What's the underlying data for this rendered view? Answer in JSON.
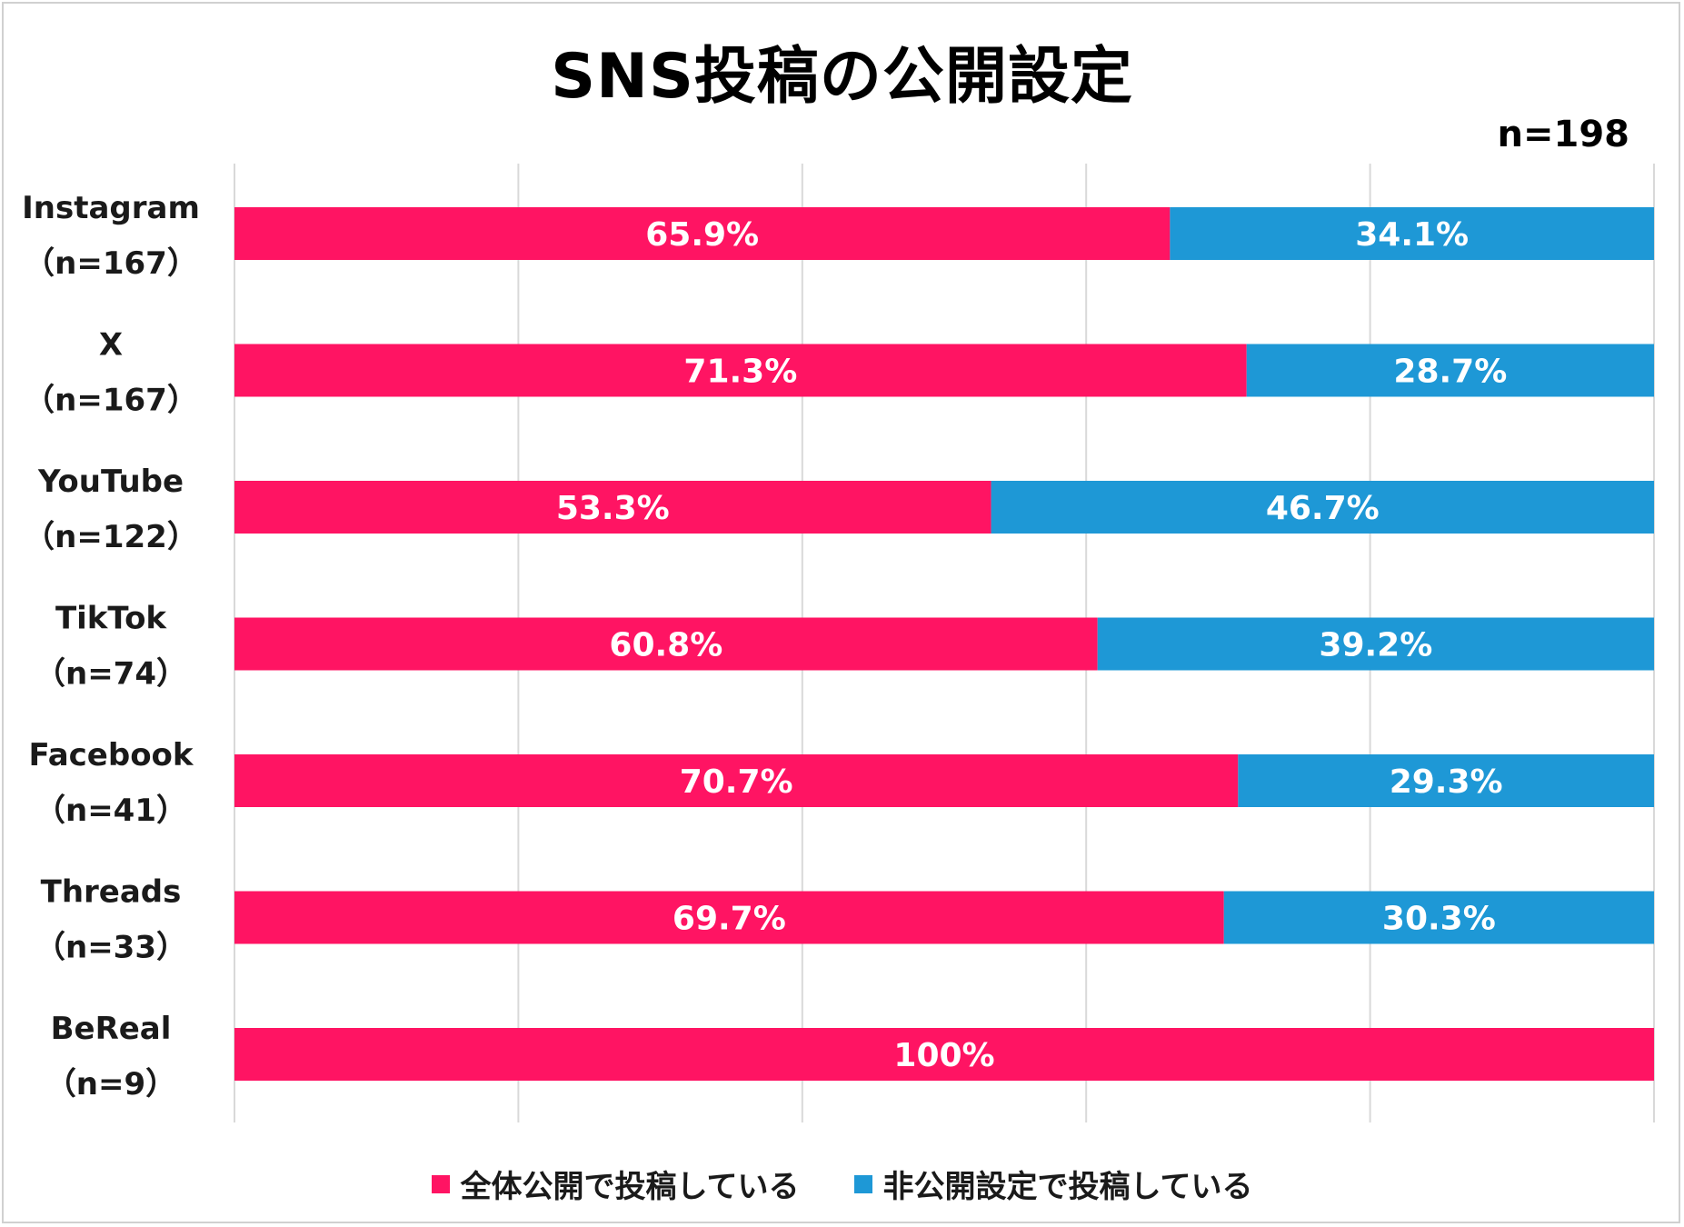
{
  "chart_data": {
    "type": "bar",
    "orientation": "horizontal",
    "stacked": true,
    "title": "SNS投稿の公開設定",
    "sample_size": "n=198",
    "categories": [
      {
        "name": "Instagram",
        "n": "（n=167）"
      },
      {
        "name": "X",
        "n": "（n=167）"
      },
      {
        "name": "YouTube",
        "n": "（n=122）"
      },
      {
        "name": "TikTok",
        "n": "（n=74）"
      },
      {
        "name": "Facebook",
        "n": "（n=41）"
      },
      {
        "name": "Threads",
        "n": "（n=33）"
      },
      {
        "name": "BeReal",
        "n": "（n=9）"
      }
    ],
    "series": [
      {
        "name": "全体公開で投稿している",
        "color": "#ff1463",
        "values": [
          65.9,
          71.3,
          53.3,
          60.8,
          70.7,
          69.7,
          100
        ],
        "labels": [
          "65.9%",
          "71.3%",
          "53.3%",
          "60.8%",
          "70.7%",
          "69.7%",
          "100%"
        ]
      },
      {
        "name": "非公開設定で投稿している",
        "color": "#1e98d6",
        "values": [
          34.1,
          28.7,
          46.7,
          39.2,
          29.3,
          30.3,
          0
        ],
        "labels": [
          "34.1%",
          "28.7%",
          "46.7%",
          "39.2%",
          "29.3%",
          "30.3%",
          ""
        ]
      }
    ],
    "xlim": [
      0,
      100
    ],
    "grid": true,
    "legend": "bottom"
  }
}
